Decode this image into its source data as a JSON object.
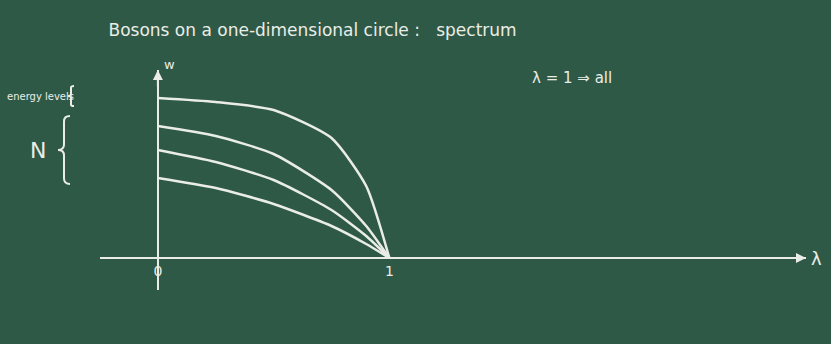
{
  "chart_data": {
    "type": "line",
    "title": "Bosons on a one-dimensional circle :   spectrum",
    "xlabel": "λ",
    "ylabel": "w",
    "x": [
      0,
      0.25,
      0.5,
      0.75,
      0.9,
      1
    ],
    "series": [
      {
        "color": "#e9ede6",
        "values": [
          4.0,
          3.9,
          3.7,
          3.0,
          1.8,
          0
        ]
      },
      {
        "color": "#e9ede6",
        "values": [
          3.3,
          3.05,
          2.6,
          1.7,
          0.8,
          0
        ]
      },
      {
        "color": "#e9ede6",
        "values": [
          2.7,
          2.4,
          1.95,
          1.2,
          0.55,
          0
        ]
      },
      {
        "color": "#e9ede6",
        "values": [
          2.0,
          1.75,
          1.35,
          0.8,
          0.35,
          0
        ]
      }
    ],
    "xlim": [
      -0.25,
      2.8
    ],
    "xticks": [
      0,
      1
    ],
    "ylim": [
      -0.8,
      4.7
    ],
    "tick_labels": "x",
    "grid": false,
    "annotations": [
      "energy levels",
      "N",
      "λ = 1 ⇒ all"
    ]
  }
}
